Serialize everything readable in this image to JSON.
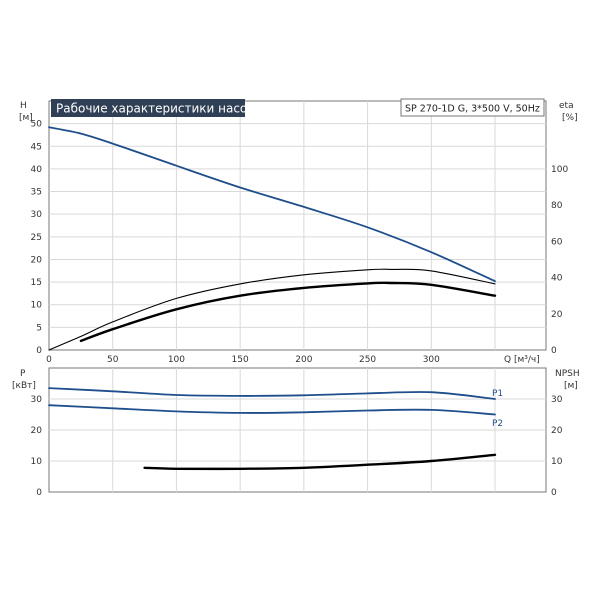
{
  "title": "Рабочие характеристики насоса",
  "model_label": "SP 270-1D G, 3*500 V, 50Hz",
  "colors": {
    "title_bg": "#2f3f55",
    "grid": "#d9d9d9",
    "axis": "#000000",
    "blue_curve": "#1f4e8c",
    "black_curve": "#000000",
    "text": "#333333"
  },
  "chart_data": [
    {
      "type": "line",
      "panel": "top",
      "xlabel": "Q [м³/ч]",
      "ylabel_left": "H",
      "ylabel_left_unit": "[м]",
      "ylabel_right": "eta",
      "ylabel_right_unit": "[%]",
      "xlim": [
        0,
        390
      ],
      "ylim_left": [
        0,
        55
      ],
      "ylim_right": [
        0,
        137.5
      ],
      "xticks": [
        0,
        50,
        100,
        150,
        200,
        250,
        300
      ],
      "yticks_left": [
        0,
        5,
        10,
        15,
        20,
        25,
        30,
        35,
        40,
        45,
        50
      ],
      "yticks_right": [
        0,
        20,
        40,
        60,
        80,
        100
      ],
      "grid": true,
      "series": [
        {
          "axis": "left",
          "color": "blue",
          "x": [
            0,
            25,
            50,
            100,
            150,
            200,
            250,
            300,
            350
          ],
          "y": [
            49.2,
            47.8,
            45.6,
            40.7,
            35.9,
            31.6,
            27.1,
            21.6,
            15.2
          ]
        },
        {
          "axis": "right",
          "color": "black",
          "stroke": "thin",
          "x": [
            0,
            25,
            50,
            100,
            150,
            200,
            250,
            270,
            300,
            350
          ],
          "y": [
            0,
            7.5,
            15.5,
            28.5,
            36.5,
            41.5,
            44.3,
            44.5,
            43.7,
            36.5
          ]
        },
        {
          "axis": "right",
          "color": "black",
          "stroke": "thick",
          "x": [
            25,
            50,
            100,
            150,
            200,
            250,
            270,
            300,
            350
          ],
          "y": [
            5,
            11.5,
            22.5,
            30,
            34.3,
            36.8,
            37,
            36,
            30
          ]
        }
      ]
    },
    {
      "type": "line",
      "panel": "bottom",
      "ylabel_left": "P",
      "ylabel_left_unit": "[кВт]",
      "ylabel_right": "NPSH",
      "ylabel_right_unit": "[м]",
      "xlim": [
        0,
        390
      ],
      "ylim_left": [
        0,
        40
      ],
      "ylim_right": [
        0,
        40
      ],
      "yticks_left": [
        0,
        10,
        20,
        30
      ],
      "yticks_right": [
        0,
        10,
        20,
        30
      ],
      "grid": true,
      "series": [
        {
          "name": "P1",
          "axis": "left",
          "color": "blue",
          "x": [
            0,
            50,
            100,
            150,
            200,
            250,
            300,
            350
          ],
          "y": [
            33.5,
            32.5,
            31.3,
            31,
            31.2,
            31.8,
            32.2,
            30
          ]
        },
        {
          "name": "P2",
          "axis": "left",
          "color": "blue",
          "x": [
            0,
            50,
            100,
            150,
            200,
            250,
            300,
            350
          ],
          "y": [
            28,
            27,
            26,
            25.5,
            25.7,
            26.3,
            26.5,
            25
          ]
        },
        {
          "axis": "right",
          "color": "black",
          "stroke": "thick",
          "x": [
            75,
            100,
            150,
            200,
            250,
            300,
            350
          ],
          "y": [
            7.8,
            7.5,
            7.5,
            7.8,
            8.8,
            10,
            12
          ]
        }
      ]
    }
  ]
}
